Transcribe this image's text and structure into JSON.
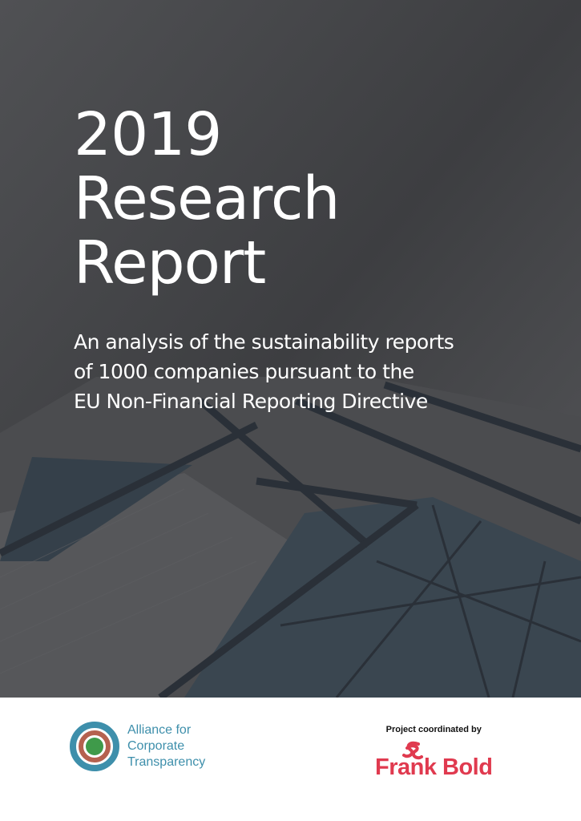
{
  "title": {
    "line1": "2019",
    "line2": "Research",
    "line3": "Report"
  },
  "subtitle": {
    "line1": "An analysis of the sustainability reports",
    "line2": "of 1000 companies pursuant to the",
    "line3": "EU Non-Financial Reporting Directive"
  },
  "footer": {
    "alliance": {
      "line1": "Alliance for",
      "line2": "Corporate",
      "line3": "Transparency",
      "colors": {
        "outer": "#3e8fab",
        "middle": "#b5614f",
        "inner": "#3f9a4a"
      }
    },
    "coordinator": {
      "label": "Project coordinated by",
      "name": "Frank Bold",
      "color": "#e03a4f"
    }
  }
}
